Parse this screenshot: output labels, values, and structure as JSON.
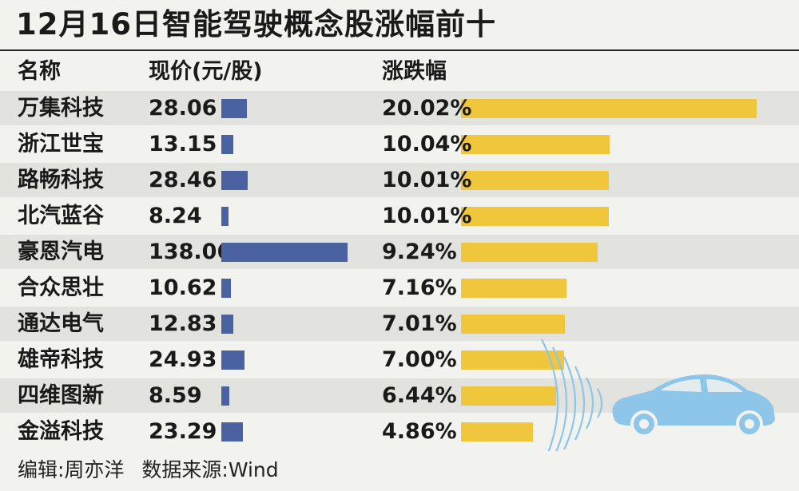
{
  "title": "12月16日智能驾驶概念股涨幅前十",
  "headers": {
    "name": "名称",
    "price": "现价(元/股)",
    "change": "涨跌幅"
  },
  "chart_data": {
    "type": "table",
    "title": "12月16日智能驾驶概念股涨幅前十",
    "columns": [
      "名称",
      "现价(元/股)",
      "涨跌幅"
    ],
    "price_max": 138.06,
    "change_max": 20.02,
    "rows": [
      {
        "name": "万集科技",
        "price": 28.06,
        "price_label": "28.06",
        "change": 20.02,
        "change_label": "20.02%"
      },
      {
        "name": "浙江世宝",
        "price": 13.15,
        "price_label": "13.15",
        "change": 10.04,
        "change_label": "10.04%"
      },
      {
        "name": "路畅科技",
        "price": 28.46,
        "price_label": "28.46",
        "change": 10.01,
        "change_label": "10.01%"
      },
      {
        "name": "北汽蓝谷",
        "price": 8.24,
        "price_label": "8.24",
        "change": 10.01,
        "change_label": "10.01%"
      },
      {
        "name": "豪恩汽电",
        "price": 138.06,
        "price_label": "138.06",
        "change": 9.24,
        "change_label": "9.24%"
      },
      {
        "name": "合众思壮",
        "price": 10.62,
        "price_label": "10.62",
        "change": 7.16,
        "change_label": "7.16%"
      },
      {
        "name": "通达电气",
        "price": 12.83,
        "price_label": "12.83",
        "change": 7.01,
        "change_label": "7.01%"
      },
      {
        "name": "雄帝科技",
        "price": 24.93,
        "price_label": "24.93",
        "change": 7.0,
        "change_label": "7.00%"
      },
      {
        "name": "四维图新",
        "price": 8.59,
        "price_label": "8.59",
        "change": 6.44,
        "change_label": "6.44%"
      },
      {
        "name": "金溢科技",
        "price": 23.29,
        "price_label": "23.29",
        "change": 4.86,
        "change_label": "4.86%"
      }
    ]
  },
  "footer": {
    "editor": "编辑:周亦洋",
    "source": "数据来源:Wind"
  },
  "colors": {
    "price_bar": "#4a62a0",
    "change_bar": "#f0c73c",
    "row_shade": "#e2e2de",
    "car": "#8dc6e8"
  },
  "icons": {
    "car": "car-icon",
    "signal": "signal-waves-icon"
  }
}
